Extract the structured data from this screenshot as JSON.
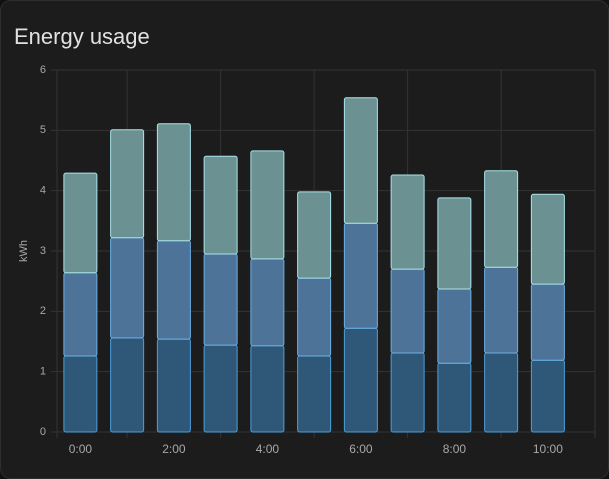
{
  "chart_data": {
    "type": "bar",
    "stacked": true,
    "title": "Energy usage",
    "y_label": "kWh",
    "categories": [
      "0:00",
      null,
      "2:00",
      null,
      "4:00",
      null,
      "6:00",
      null,
      "8:00",
      null,
      "10:00"
    ],
    "series": [
      {
        "color": "#2f5878",
        "values": [
          1.26,
          1.56,
          1.54,
          1.44,
          1.43,
          1.26,
          1.72,
          1.31,
          1.14,
          1.31,
          1.19
        ]
      },
      {
        "color": "#4e7398",
        "values": [
          1.38,
          1.66,
          1.63,
          1.51,
          1.44,
          1.29,
          1.74,
          1.39,
          1.23,
          1.42,
          1.26
        ]
      },
      {
        "color": "#6b9193",
        "values": [
          1.65,
          1.79,
          1.94,
          1.62,
          1.79,
          1.43,
          2.08,
          1.56,
          1.51,
          1.6,
          1.49
        ]
      }
    ],
    "ylim": [
      0,
      6
    ],
    "yticks": [
      0,
      1,
      2,
      3,
      4,
      5,
      6
    ],
    "grid": true
  }
}
